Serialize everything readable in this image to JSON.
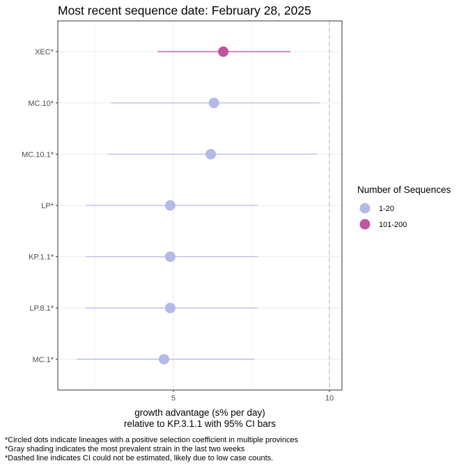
{
  "chart_data": {
    "type": "scatter",
    "title": "Most recent sequence date: February 28, 2025",
    "xlabel_line1": "growth advantage (s% per day)",
    "xlabel_line2": "relative to  KP.3.1.1  with 95% CI bars",
    "xlim": [
      1.3,
      10.4
    ],
    "xticks": [
      5,
      10
    ],
    "minor_xticks": [
      2.5,
      7.5
    ],
    "reference_line_x": 10,
    "grid": true,
    "legend_position": "right",
    "legend": {
      "title": "Number of Sequences",
      "entries": [
        {
          "label": "1-20",
          "color": "#b3b9e8"
        },
        {
          "label": "101-200",
          "color": "#c0569f"
        }
      ]
    },
    "points": [
      {
        "lineage": "XEC*",
        "value": 6.6,
        "ci_low": 4.5,
        "ci_high": 8.75,
        "group": "101-200"
      },
      {
        "lineage": "MC.10*",
        "value": 6.3,
        "ci_low": 3.0,
        "ci_high": 9.7,
        "group": "1-20"
      },
      {
        "lineage": "MC.10.1*",
        "value": 6.2,
        "ci_low": 2.9,
        "ci_high": 9.6,
        "group": "1-20"
      },
      {
        "lineage": "LP*",
        "value": 4.9,
        "ci_low": 2.2,
        "ci_high": 7.7,
        "group": "1-20"
      },
      {
        "lineage": "KP.1.1*",
        "value": 4.9,
        "ci_low": 2.2,
        "ci_high": 7.7,
        "group": "1-20"
      },
      {
        "lineage": "LP.8.1*",
        "value": 4.9,
        "ci_low": 2.2,
        "ci_high": 7.7,
        "group": "1-20"
      },
      {
        "lineage": "MC.1*",
        "value": 4.7,
        "ci_low": 1.9,
        "ci_high": 7.6,
        "group": "1-20"
      }
    ]
  },
  "footnotes": [
    "*Circled dots indicate lineages with a positive selection coefficient in multiple provinces",
    "*Gray shading indicates the most prevalent strain in the last two weeks",
    "*Dashed line indicates CI could not be estimated, likely due to low case counts."
  ]
}
